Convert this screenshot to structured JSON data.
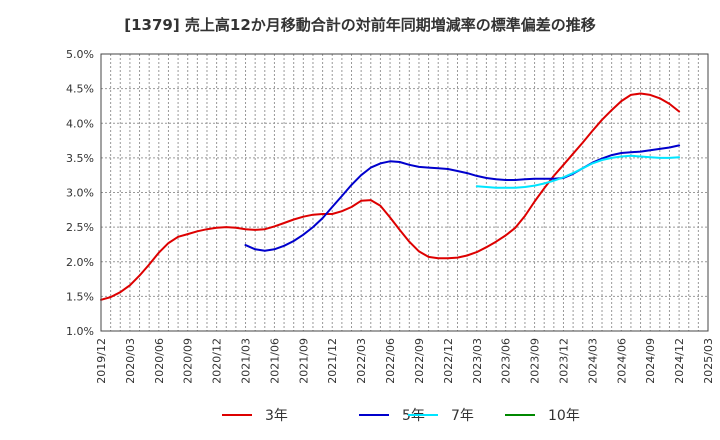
{
  "chart_data": {
    "type": "line",
    "title": "[1379]  売上高12か月移動合計の対前年同期増減率の標準偏差の推移",
    "xlabel": "",
    "ylabel": "",
    "y_range": [
      0.01,
      0.05
    ],
    "y_ticks": [
      {
        "value": 0.01,
        "label": "1.0%"
      },
      {
        "value": 0.015,
        "label": "1.5%"
      },
      {
        "value": 0.02,
        "label": "2.0%"
      },
      {
        "value": 0.025,
        "label": "2.5%"
      },
      {
        "value": 0.03,
        "label": "3.0%"
      },
      {
        "value": 0.035,
        "label": "3.5%"
      },
      {
        "value": 0.04,
        "label": "4.0%"
      },
      {
        "value": 0.045,
        "label": "4.5%"
      },
      {
        "value": 0.05,
        "label": "5.0%"
      }
    ],
    "x_range": [
      "2019-12",
      "2025-03"
    ],
    "x_ticks": [
      "2019/12",
      "2020/03",
      "2020/06",
      "2020/09",
      "2020/12",
      "2021/03",
      "2021/06",
      "2021/09",
      "2021/12",
      "2022/03",
      "2022/06",
      "2022/09",
      "2022/12",
      "2023/03",
      "2023/06",
      "2023/09",
      "2023/12",
      "2024/03",
      "2024/06",
      "2024/09",
      "2024/12",
      "2025/03"
    ],
    "grid": true,
    "legend_position": "bottom",
    "colors": {
      "3年": "#dd0000",
      "5年": "#0000cc",
      "7年": "#00e5ff",
      "10年": "#008800"
    },
    "series": [
      {
        "name": "3年",
        "x": [
          "2019-12",
          "2020-01",
          "2020-02",
          "2020-03",
          "2020-04",
          "2020-05",
          "2020-06",
          "2020-07",
          "2020-08",
          "2020-09",
          "2020-10",
          "2020-11",
          "2020-12",
          "2021-01",
          "2021-02",
          "2021-03",
          "2021-04",
          "2021-05",
          "2021-06",
          "2021-07",
          "2021-08",
          "2021-09",
          "2021-10",
          "2021-11",
          "2021-12",
          "2022-01",
          "2022-02",
          "2022-03",
          "2022-04",
          "2022-05",
          "2022-06",
          "2022-07",
          "2022-08",
          "2022-09",
          "2022-10",
          "2022-11",
          "2022-12",
          "2023-01",
          "2023-02",
          "2023-03",
          "2023-04",
          "2023-05",
          "2023-06",
          "2023-07",
          "2023-08",
          "2023-09",
          "2023-10",
          "2023-11",
          "2023-12",
          "2024-01",
          "2024-02",
          "2024-03",
          "2024-04",
          "2024-05",
          "2024-06",
          "2024-07",
          "2024-08",
          "2024-09",
          "2024-10",
          "2024-11",
          "2024-12"
        ],
        "values": [
          0.0145,
          0.0149,
          0.0156,
          0.0166,
          0.018,
          0.0196,
          0.0213,
          0.0227,
          0.0236,
          0.024,
          0.0244,
          0.0247,
          0.0249,
          0.025,
          0.0249,
          0.0247,
          0.0246,
          0.0247,
          0.0251,
          0.0256,
          0.0261,
          0.0265,
          0.0268,
          0.0269,
          0.0269,
          0.0273,
          0.0279,
          0.0288,
          0.0289,
          0.0281,
          0.0264,
          0.0246,
          0.0229,
          0.0215,
          0.0207,
          0.0205,
          0.0205,
          0.0206,
          0.0209,
          0.0214,
          0.0221,
          0.0229,
          0.0238,
          0.0249,
          0.0266,
          0.0287,
          0.0306,
          0.0324,
          0.034,
          0.0356,
          0.0372,
          0.0389,
          0.0405,
          0.0419,
          0.0432,
          0.0441,
          0.0443,
          0.0441,
          0.0436,
          0.0428,
          0.0417
        ]
      },
      {
        "name": "5年",
        "x": [
          "2021-03",
          "2021-04",
          "2021-05",
          "2021-06",
          "2021-07",
          "2021-08",
          "2021-09",
          "2021-10",
          "2021-11",
          "2021-12",
          "2022-01",
          "2022-02",
          "2022-03",
          "2022-04",
          "2022-05",
          "2022-06",
          "2022-07",
          "2022-08",
          "2022-09",
          "2022-10",
          "2022-11",
          "2022-12",
          "2023-01",
          "2023-02",
          "2023-03",
          "2023-04",
          "2023-05",
          "2023-06",
          "2023-07",
          "2023-08",
          "2023-09",
          "2023-10",
          "2023-11",
          "2023-12",
          "2024-01",
          "2024-02",
          "2024-03",
          "2024-04",
          "2024-05",
          "2024-06",
          "2024-07",
          "2024-08",
          "2024-09",
          "2024-10",
          "2024-11",
          "2024-12"
        ],
        "values": [
          0.0224,
          0.0218,
          0.0216,
          0.0218,
          0.0223,
          0.023,
          0.0239,
          0.025,
          0.0263,
          0.0279,
          0.0295,
          0.0311,
          0.0325,
          0.0336,
          0.0342,
          0.0345,
          0.0344,
          0.034,
          0.0337,
          0.0336,
          0.0335,
          0.0334,
          0.0331,
          0.0328,
          0.0324,
          0.0321,
          0.0319,
          0.0318,
          0.0318,
          0.0319,
          0.032,
          0.032,
          0.032,
          0.0321,
          0.0327,
          0.0335,
          0.0343,
          0.0349,
          0.0354,
          0.0357,
          0.0358,
          0.0359,
          0.0361,
          0.0363,
          0.0365,
          0.0368
        ]
      },
      {
        "name": "7年",
        "x": [
          "2023-03",
          "2023-04",
          "2023-05",
          "2023-06",
          "2023-07",
          "2023-08",
          "2023-09",
          "2023-10",
          "2023-11",
          "2023-12",
          "2024-01",
          "2024-02",
          "2024-03",
          "2024-04",
          "2024-05",
          "2024-06",
          "2024-07",
          "2024-08",
          "2024-09",
          "2024-10",
          "2024-11",
          "2024-12"
        ],
        "values": [
          0.0309,
          0.0308,
          0.0307,
          0.0307,
          0.0307,
          0.0308,
          0.031,
          0.0313,
          0.0317,
          0.0322,
          0.0328,
          0.0335,
          0.0342,
          0.0347,
          0.035,
          0.0352,
          0.0353,
          0.0352,
          0.0351,
          0.035,
          0.035,
          0.0351
        ]
      },
      {
        "name": "10年",
        "x": [],
        "values": []
      }
    ]
  }
}
